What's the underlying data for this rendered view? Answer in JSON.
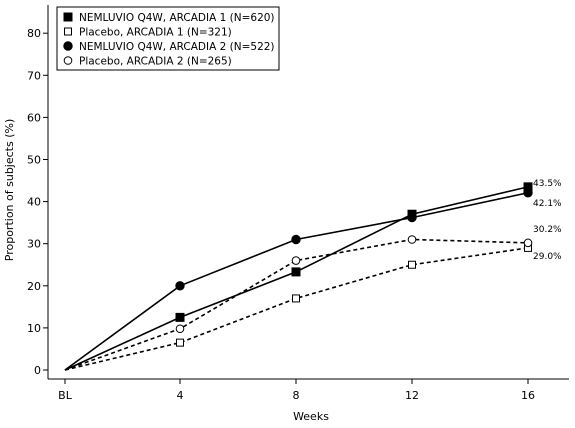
{
  "chart_data": {
    "type": "line",
    "title": "",
    "xlabel": "Weeks",
    "ylabel": "Proportion of subjects (%)",
    "x": [
      "BL",
      "4",
      "8",
      "12",
      "16"
    ],
    "ylim": [
      0,
      85
    ],
    "yticks": [
      0,
      10,
      20,
      30,
      40,
      50,
      60,
      70,
      80
    ],
    "grid": false,
    "legend_position": "top-left",
    "series": [
      {
        "name": "NEMLUVIO Q4W, ARCADIA 1 (N=620)",
        "values": [
          0,
          12.5,
          23.3,
          37.0,
          43.5
        ],
        "marker": "filled-square",
        "line": "solid",
        "end_label": "43.5%"
      },
      {
        "name": "Placebo, ARCADIA 1 (N=321)",
        "values": [
          0,
          6.5,
          17.0,
          25.0,
          29.0
        ],
        "marker": "open-square",
        "line": "dashed",
        "end_label": "29.0%"
      },
      {
        "name": "NEMLUVIO Q4W, ARCADIA 2 (N=522)",
        "values": [
          0,
          20.0,
          31.0,
          36.2,
          42.1
        ],
        "marker": "filled-circle",
        "line": "solid",
        "end_label": "42.1%"
      },
      {
        "name": "Placebo, ARCADIA 2 (N=265)",
        "values": [
          0,
          9.8,
          26.0,
          31.0,
          30.2
        ],
        "marker": "open-circle",
        "line": "dashed",
        "end_label": "30.2%"
      }
    ]
  }
}
